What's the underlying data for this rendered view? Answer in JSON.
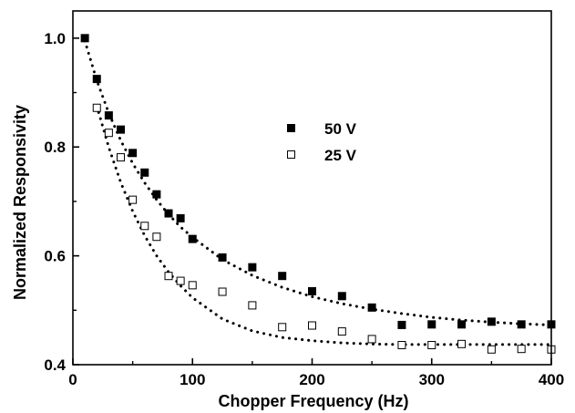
{
  "chart_data": {
    "type": "scatter",
    "title": "",
    "xlabel": "Chopper Frequency (Hz)",
    "ylabel": "Normalized Responsivity",
    "xlim": [
      0,
      400
    ],
    "ylim": [
      0.4,
      1.05
    ],
    "xticks": [
      0,
      100,
      200,
      300,
      400
    ],
    "yticks": [
      0.4,
      0.6,
      0.8,
      1.0
    ],
    "xtick_labels": [
      "0",
      "100",
      "200",
      "300",
      "400"
    ],
    "ytick_labels": [
      "0.4",
      "0.6",
      "0.8",
      "1.0"
    ],
    "grid": false,
    "legend_position": "upper-center",
    "series": [
      {
        "name": "50 V",
        "marker": "filled-square",
        "color": "#000000",
        "x": [
          10,
          20,
          30,
          40,
          50,
          60,
          70,
          80,
          90,
          100,
          125,
          150,
          175,
          200,
          225,
          250,
          275,
          300,
          325,
          350,
          375,
          400
        ],
        "y": [
          1.0,
          0.925,
          0.858,
          0.832,
          0.789,
          0.753,
          0.713,
          0.678,
          0.669,
          0.631,
          0.597,
          0.579,
          0.563,
          0.535,
          0.526,
          0.505,
          0.473,
          0.474,
          0.474,
          0.479,
          0.474,
          0.474
        ]
      },
      {
        "name": "25 V",
        "marker": "open-square",
        "color": "#000000",
        "x": [
          20,
          30,
          40,
          50,
          60,
          70,
          80,
          90,
          100,
          125,
          150,
          175,
          200,
          225,
          250,
          275,
          300,
          325,
          350,
          375,
          400
        ],
        "y": [
          0.872,
          0.826,
          0.781,
          0.703,
          0.655,
          0.635,
          0.563,
          0.554,
          0.546,
          0.534,
          0.509,
          0.469,
          0.472,
          0.461,
          0.447,
          0.436,
          0.436,
          0.438,
          0.428,
          0.429,
          0.428
        ]
      }
    ],
    "fits": [
      {
        "series": "50 V",
        "style": "dotted",
        "x": [
          10,
          20,
          30,
          40,
          50,
          60,
          70,
          80,
          90,
          100,
          125,
          150,
          175,
          200,
          225,
          250,
          275,
          300,
          325,
          350,
          375,
          400
        ],
        "y": [
          0.995,
          0.922,
          0.862,
          0.812,
          0.77,
          0.734,
          0.703,
          0.676,
          0.653,
          0.634,
          0.593,
          0.564,
          0.542,
          0.525,
          0.512,
          0.502,
          0.494,
          0.487,
          0.482,
          0.478,
          0.475,
          0.473
        ]
      },
      {
        "series": "25 V",
        "style": "dotted",
        "x": [
          20,
          30,
          40,
          50,
          60,
          70,
          80,
          90,
          100,
          125,
          150,
          175,
          200,
          225,
          250,
          275,
          300,
          325,
          350,
          375,
          400
        ],
        "y": [
          0.875,
          0.799,
          0.735,
          0.682,
          0.637,
          0.6,
          0.57,
          0.545,
          0.523,
          0.484,
          0.462,
          0.45,
          0.444,
          0.44,
          0.438,
          0.437,
          0.437,
          0.437,
          0.437,
          0.437,
          0.437
        ]
      }
    ]
  }
}
